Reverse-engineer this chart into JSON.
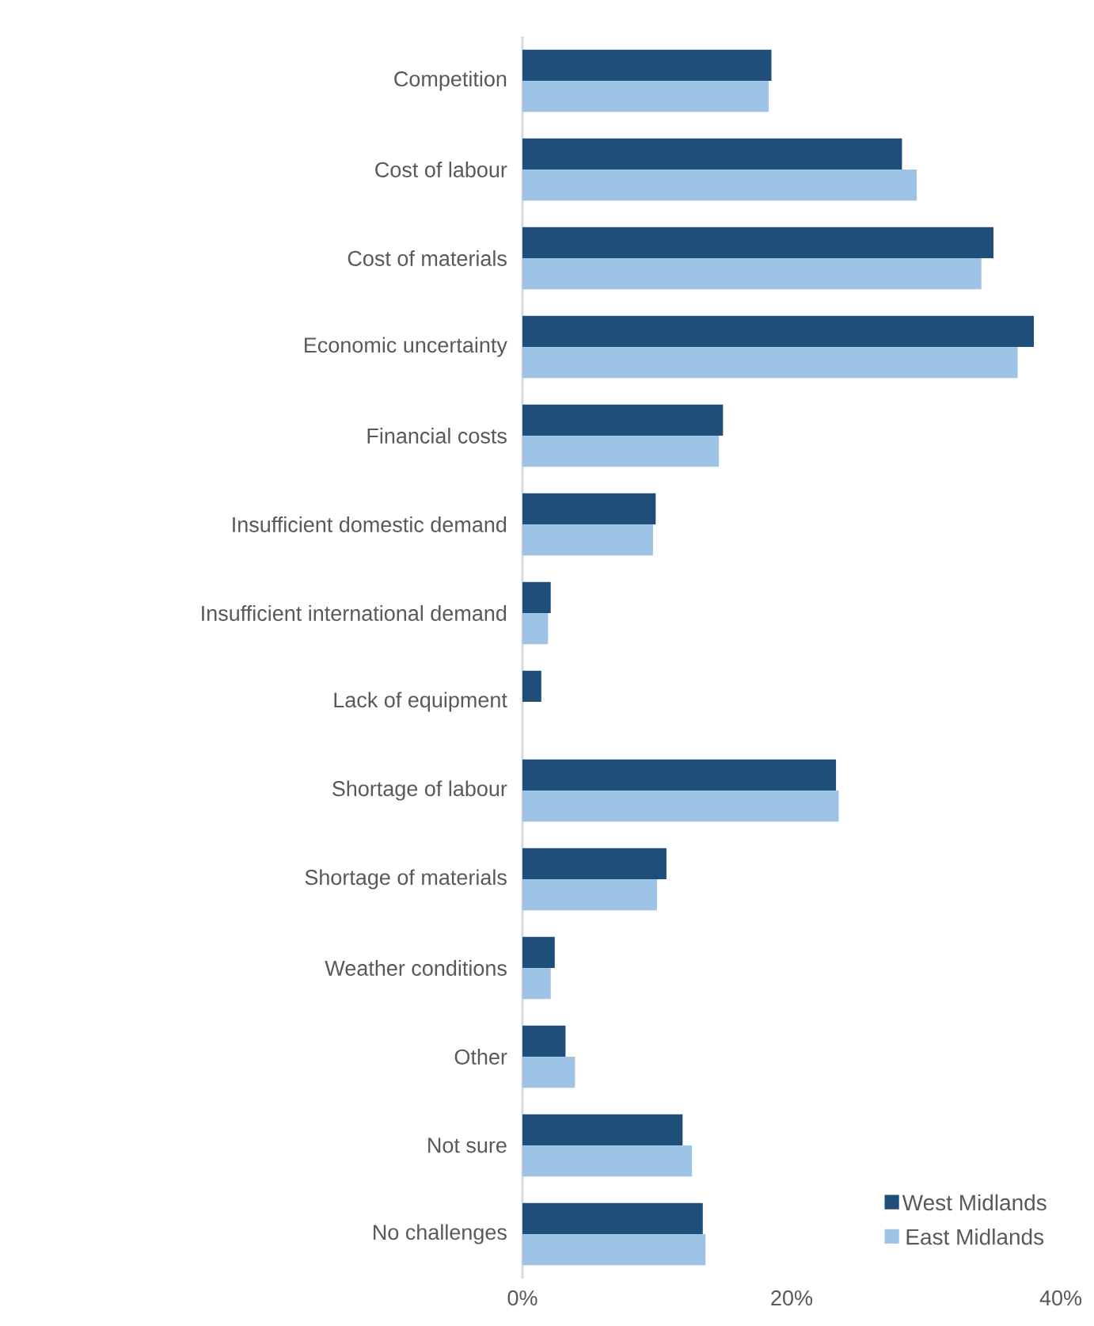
{
  "chart_data": {
    "type": "bar",
    "orientation": "horizontal",
    "categories": [
      "Competition",
      "Cost of labour",
      "Cost of materials",
      "Economic uncertainty",
      "Financial costs",
      "Insufficient domestic demand",
      "Insufficient international demand",
      "Lack of equipment",
      "Shortage of labour",
      "Shortage of materials",
      "Weather conditions",
      "Other",
      "Not sure",
      "No challenges"
    ],
    "series": [
      {
        "name": "West Midlands",
        "color": "#1f4e79",
        "values": [
          18.5,
          28.2,
          35.0,
          38.0,
          14.9,
          9.9,
          2.1,
          1.4,
          23.3,
          10.7,
          2.4,
          3.2,
          11.9,
          13.4
        ]
      },
      {
        "name": "East Midlands",
        "color": "#9dc3e6",
        "values": [
          18.3,
          29.3,
          34.1,
          36.8,
          14.6,
          9.7,
          1.9,
          null,
          23.5,
          10.0,
          2.1,
          3.9,
          12.6,
          13.6
        ]
      }
    ],
    "xlim": [
      0,
      40
    ],
    "xticks": [
      {
        "value": 0,
        "label": "0%"
      },
      {
        "value": 20,
        "label": "20%"
      },
      {
        "value": 40,
        "label": "40%"
      }
    ],
    "legend": "bottom right"
  }
}
